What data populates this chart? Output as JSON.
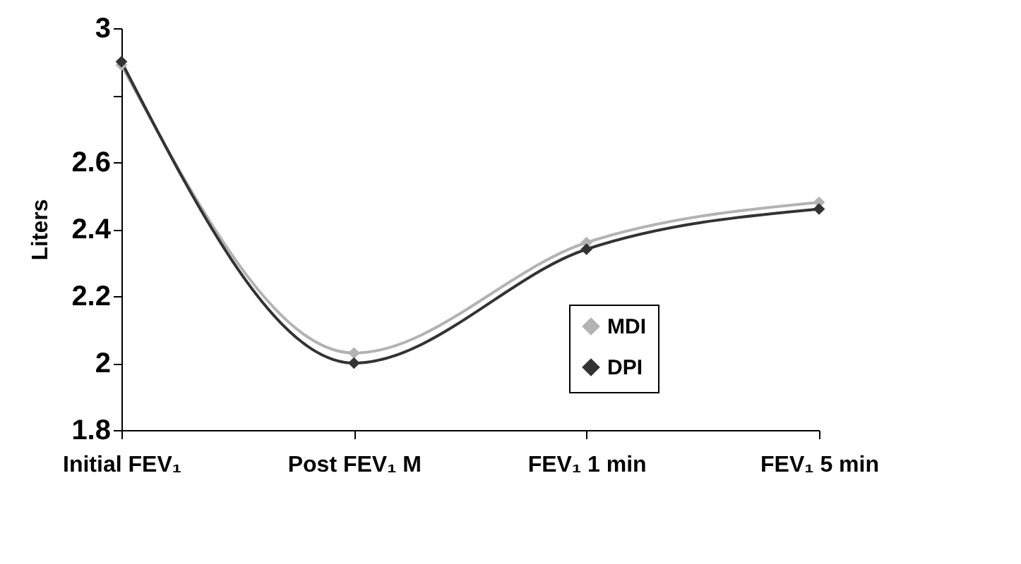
{
  "chart_data": {
    "type": "line",
    "ylabel": "Liters",
    "categories": [
      "Initial FEV₁",
      "Post FEV₁\nM",
      "FEV₁ 1 min",
      "FEV₁ 5 min"
    ],
    "series": [
      {
        "name": "MDI",
        "color": "#b3b3b3",
        "values": [
          2.89,
          2.03,
          2.36,
          2.48
        ]
      },
      {
        "name": "DPI",
        "color": "#333333",
        "values": [
          2.9,
          2.0,
          2.34,
          2.46
        ]
      }
    ],
    "ylim": [
      1.8,
      3
    ],
    "yticks": [
      1.8,
      2,
      2.2,
      2.4,
      2.6,
      {
        "value": 2.8,
        "label": null
      },
      3
    ],
    "grid": false,
    "legend": "bottom right",
    "marker": "diamond",
    "line_style": "solid"
  }
}
